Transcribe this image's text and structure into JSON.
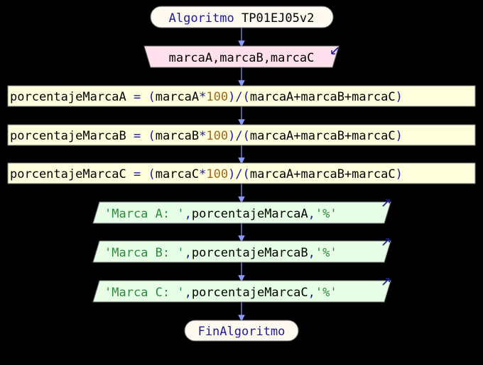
{
  "start": {
    "keyword": "Algoritmo",
    "name": "TP01EJ05v2"
  },
  "read": {
    "vars": "marcaA,marcaB,marcaC"
  },
  "assign": [
    {
      "target": "porcentajeMarcaA",
      "eq": " = ",
      "lp": "(",
      "var": "marcaA",
      "mul": "*",
      "num": "100",
      "rp": ")",
      "div": "/",
      "denom_l": "(",
      "denom": "marcaA+marcaB+marcaC",
      "denom_r": ")"
    },
    {
      "target": "porcentajeMarcaB",
      "eq": " = ",
      "lp": "(",
      "var": "marcaB",
      "mul": "*",
      "num": "100",
      "rp": ")",
      "div": "/",
      "denom_l": "(",
      "denom": "marcaA+marcaB+marcaC",
      "denom_r": ")"
    },
    {
      "target": "porcentajeMarcaC",
      "eq": " = ",
      "lp": "(",
      "var": "marcaC",
      "mul": "*",
      "num": "100",
      "rp": ")",
      "div": "/",
      "denom_l": "(",
      "denom": "marcaA+marcaB+marcaC",
      "denom_r": ")"
    }
  ],
  "write": [
    {
      "str1": "'Marca A: '",
      "comma1": ",",
      "var": "porcentajeMarcaA",
      "comma2": ",",
      "str2": "'%'"
    },
    {
      "str1": "'Marca B: '",
      "comma1": ",",
      "var": "porcentajeMarcaB",
      "comma2": ",",
      "str2": "'%'"
    },
    {
      "str1": "'Marca C: '",
      "comma1": ",",
      "var": "porcentajeMarcaC",
      "comma2": ",",
      "str2": "'%'"
    }
  ],
  "end": {
    "keyword": "FinAlgoritmo"
  },
  "colors": {
    "background": "#000000",
    "start_fill": "#fffaf0",
    "read_fill": "#ffe0ec",
    "assign_fill": "#ffffdd",
    "write_fill": "#e6ffe6",
    "arrow": "#8899ff",
    "keyword": "#1a1aa0",
    "number": "#a06a20",
    "string": "#2e8b3e"
  }
}
